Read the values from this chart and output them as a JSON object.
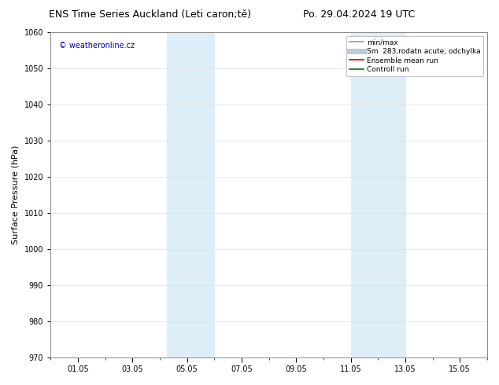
{
  "title_left": "ENS Time Series Auckland (Leti caron;tě)",
  "title_right": "Po. 29.04.2024 19 UTC",
  "ylabel": "Surface Pressure (hPa)",
  "ylim": [
    970,
    1060
  ],
  "yticks": [
    970,
    980,
    990,
    1000,
    1010,
    1020,
    1030,
    1040,
    1050,
    1060
  ],
  "xtick_labels": [
    "01.05",
    "03.05",
    "05.05",
    "07.05",
    "09.05",
    "11.05",
    "13.05",
    "15.05"
  ],
  "xtick_positions": [
    1,
    3,
    5,
    7,
    9,
    11,
    13,
    15
  ],
  "xlim": [
    0,
    16
  ],
  "shaded_bands": [
    {
      "x_start": 4.25,
      "x_end": 6.0,
      "color": "#ddeef8"
    },
    {
      "x_start": 11.0,
      "x_end": 13.0,
      "color": "#ddeef8"
    }
  ],
  "watermark_text": "© weatheronline.cz",
  "watermark_color": "#0000bb",
  "background_color": "#ffffff",
  "legend_entries": [
    {
      "label": "min/max",
      "color": "#999999",
      "lw": 1.2
    },
    {
      "label": "Sm  283;rodatn acute; odchylka",
      "color": "#bbccdd",
      "lw": 5
    },
    {
      "label": "Ensemble mean run",
      "color": "#dd0000",
      "lw": 1.2
    },
    {
      "label": "Controll run",
      "color": "#007700",
      "lw": 1.2
    }
  ],
  "grid_color": "#dddddd",
  "title_fontsize": 9,
  "axis_label_fontsize": 8,
  "tick_fontsize": 7,
  "legend_fontsize": 6.5
}
